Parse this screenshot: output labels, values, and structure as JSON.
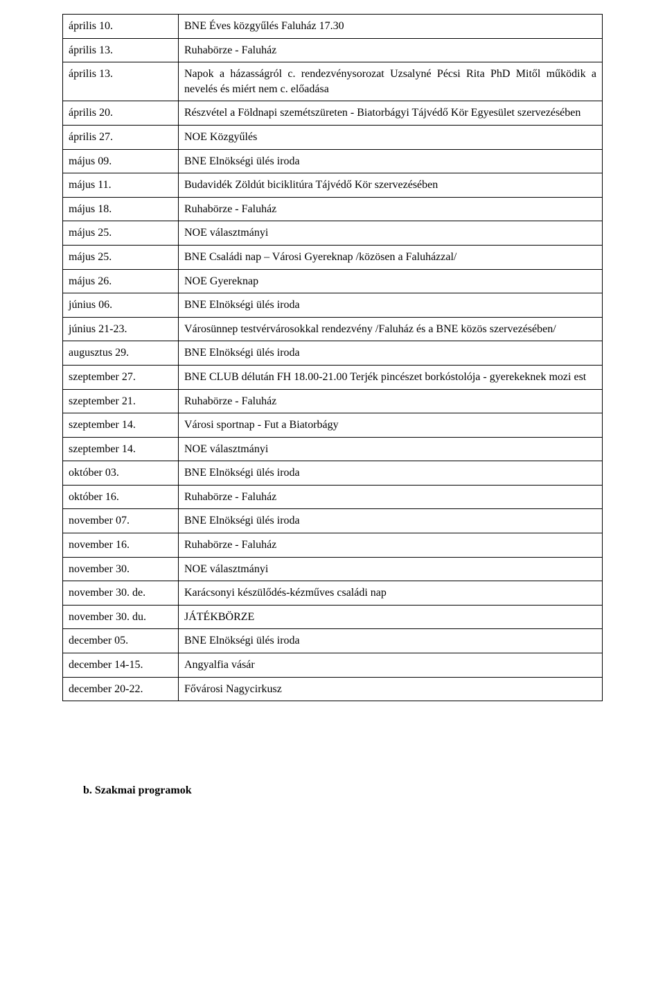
{
  "table": {
    "rows": [
      {
        "date": "április 10.",
        "content": "BNE Éves közgyűlés Faluház 17.30"
      },
      {
        "date": "április 13.",
        "content": "Ruhabörze - Faluház"
      },
      {
        "date": "április 13.",
        "content": "Napok a házasságról c. rendezvénysorozat Uzsalyné Pécsi Rita PhD Mitől működik a nevelés és miért nem c. előadása"
      },
      {
        "date": "április 20.",
        "content": "Részvétel a Földnapi szemétszüreten - Biatorbágyi Tájvédő Kör Egyesület szervezésében"
      },
      {
        "date": "április 27.",
        "content": "NOE Közgyűlés"
      },
      {
        "date": "május 09.",
        "content": "BNE Elnökségi ülés iroda"
      },
      {
        "date": "május 11.",
        "content": "Budavidék Zöldút biciklitúra Tájvédő Kör szervezésében"
      },
      {
        "date": "május 18.",
        "content": "Ruhabörze - Faluház"
      },
      {
        "date": "május 25.",
        "content": "NOE választmányi"
      },
      {
        "date": "május 25.",
        "content": "BNE Családi nap – Városi Gyereknap /közösen a Faluházzal/"
      },
      {
        "date": "május 26.",
        "content": "NOE Gyereknap"
      },
      {
        "date": "június 06.",
        "content": "BNE Elnökségi ülés iroda"
      },
      {
        "date": "június 21-23.",
        "content": "Városünnep testvérvárosokkal rendezvény /Faluház és a BNE közös szervezésében/"
      },
      {
        "date": "augusztus 29.",
        "content": " BNE Elnökségi ülés iroda"
      },
      {
        "date": "szeptember 27.",
        "content": "BNE CLUB délután FH 18.00-21.00 Terjék pincészet borkóstolója - gyerekeknek mozi est"
      },
      {
        "date": "szeptember 21.",
        "content": "Ruhabörze - Faluház"
      },
      {
        "date": "szeptember 14.",
        "content": "Városi sportnap - Fut a Biatorbágy"
      },
      {
        "date": "szeptember 14.",
        "content": "NOE választmányi"
      },
      {
        "date": "október 03.",
        "content": "BNE Elnökségi ülés iroda"
      },
      {
        "date": "október 16.",
        "content": "Ruhabörze - Faluház"
      },
      {
        "date": "november 07.",
        "content": "BNE Elnökségi ülés iroda"
      },
      {
        "date": "november 16.",
        "content": "Ruhabörze - Faluház"
      },
      {
        "date": "november 30.",
        "content": "NOE választmányi"
      },
      {
        "date": "november 30. de.",
        "content": "Karácsonyi készülődés-kézműves családi nap"
      },
      {
        "date": "november 30. du.",
        "content": "JÁTÉKBÖRZE"
      },
      {
        "date": "december 05.",
        "content": "BNE Elnökségi ülés iroda"
      },
      {
        "date": "december 14-15.",
        "content": "Angyalfia vásár"
      },
      {
        "date": "december 20-22.",
        "content": "Fővárosi Nagycirkusz"
      }
    ]
  },
  "section_heading": "b.    Szakmai programok"
}
